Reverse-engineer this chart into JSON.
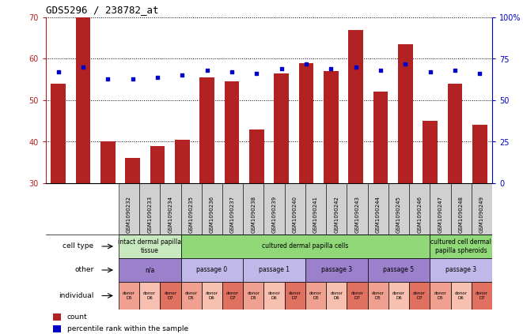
{
  "title": "GDS5296 / 238782_at",
  "samples": [
    "GSM1090232",
    "GSM1090233",
    "GSM1090234",
    "GSM1090235",
    "GSM1090236",
    "GSM1090237",
    "GSM1090238",
    "GSM1090239",
    "GSM1090240",
    "GSM1090241",
    "GSM1090242",
    "GSM1090243",
    "GSM1090244",
    "GSM1090245",
    "GSM1090246",
    "GSM1090247",
    "GSM1090248",
    "GSM1090249"
  ],
  "count_values": [
    54.0,
    70.0,
    40.0,
    36.0,
    39.0,
    40.5,
    55.5,
    54.5,
    43.0,
    56.5,
    59.0,
    57.0,
    67.0,
    52.0,
    63.5,
    45.0,
    54.0,
    44.0
  ],
  "percentile_values": [
    67,
    70,
    63,
    63,
    64,
    65,
    68,
    67,
    66,
    69,
    72,
    69,
    70,
    68,
    72,
    67,
    68,
    66
  ],
  "ylim_left": [
    30,
    70
  ],
  "ylim_right": [
    0,
    100
  ],
  "yticks_left": [
    30,
    40,
    50,
    60,
    70
  ],
  "yticks_right": [
    0,
    25,
    50,
    75,
    100
  ],
  "bar_color": "#b22222",
  "dot_color": "#0000cc",
  "cell_type_groups": [
    {
      "label": "intact dermal papilla\ntissue",
      "span": [
        0,
        3
      ],
      "color": "#c8e8c0"
    },
    {
      "label": "cultured dermal papilla cells",
      "span": [
        3,
        15
      ],
      "color": "#90d878"
    },
    {
      "label": "cultured cell dermal\npapilla spheroids",
      "span": [
        15,
        18
      ],
      "color": "#90d878"
    }
  ],
  "other_groups": [
    {
      "label": "n/a",
      "span": [
        0,
        3
      ],
      "color": "#9b80cc"
    },
    {
      "label": "passage 0",
      "span": [
        3,
        6
      ],
      "color": "#c0b8e8"
    },
    {
      "label": "passage 1",
      "span": [
        6,
        9
      ],
      "color": "#c0b8e8"
    },
    {
      "label": "passage 3",
      "span": [
        9,
        12
      ],
      "color": "#9b80cc"
    },
    {
      "label": "passage 5",
      "span": [
        12,
        15
      ],
      "color": "#9b80cc"
    },
    {
      "label": "passage 3",
      "span": [
        15,
        18
      ],
      "color": "#c0b8e8"
    }
  ],
  "individual_cells": [
    {
      "label": "donor\nD5",
      "color": "#f0a090"
    },
    {
      "label": "donor\nD6",
      "color": "#f8c0b0"
    },
    {
      "label": "donor\nD7",
      "color": "#e07060"
    },
    {
      "label": "donor\nD5",
      "color": "#f0a090"
    },
    {
      "label": "donor\nD6",
      "color": "#f8c0b0"
    },
    {
      "label": "donor\nD7",
      "color": "#e07060"
    },
    {
      "label": "donor\nD5",
      "color": "#f0a090"
    },
    {
      "label": "donor\nD6",
      "color": "#f8c0b0"
    },
    {
      "label": "donor\nD7",
      "color": "#e07060"
    },
    {
      "label": "donor\nD5",
      "color": "#f0a090"
    },
    {
      "label": "donor\nD6",
      "color": "#f8c0b0"
    },
    {
      "label": "donor\nD7",
      "color": "#e07060"
    },
    {
      "label": "donor\nD5",
      "color": "#f0a090"
    },
    {
      "label": "donor\nD6",
      "color": "#f8c0b0"
    },
    {
      "label": "donor\nD7",
      "color": "#e07060"
    },
    {
      "label": "donor\nD5",
      "color": "#f0a090"
    },
    {
      "label": "donor\nD6",
      "color": "#f8c0b0"
    },
    {
      "label": "donor\nD7",
      "color": "#e07060"
    }
  ],
  "row_labels": [
    "cell type",
    "other",
    "individual"
  ],
  "legend_items": [
    {
      "label": "count",
      "color": "#b22222"
    },
    {
      "label": "percentile rank within the sample",
      "color": "#0000cc"
    }
  ],
  "sample_bg_color": "#d0d0d0",
  "fig_width": 6.61,
  "fig_height": 4.23,
  "dpi": 100
}
